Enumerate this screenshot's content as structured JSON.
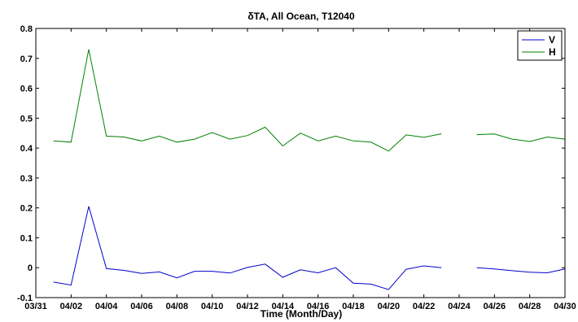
{
  "chart_data": {
    "type": "line",
    "title": "δTA,  All Ocean,   T12040",
    "xlabel": "Time (Month/Day)",
    "ylabel": "",
    "x_tick_labels": [
      "03/31",
      "04/02",
      "04/04",
      "04/06",
      "04/08",
      "04/10",
      "04/12",
      "04/14",
      "04/16",
      "04/18",
      "04/20",
      "04/22",
      "04/24",
      "04/26",
      "04/28",
      "04/30"
    ],
    "y_tick_labels": [
      "-0.1",
      "0",
      "0.1",
      "0.2",
      "0.3",
      "0.4",
      "0.5",
      "0.6",
      "0.7",
      "0.8"
    ],
    "xlim": [
      "03/31",
      "04/30"
    ],
    "ylim": [
      -0.1,
      0.8
    ],
    "grid": false,
    "legend_position": "top-right",
    "x": [
      "04/01",
      "04/02",
      "04/03",
      "04/04",
      "04/05",
      "04/06",
      "04/07",
      "04/08",
      "04/09",
      "04/10",
      "04/11",
      "04/12",
      "04/13",
      "04/14",
      "04/15",
      "04/16",
      "04/17",
      "04/18",
      "04/19",
      "04/20",
      "04/21",
      "04/22",
      "04/23",
      "04/24",
      "04/25",
      "04/26",
      "04/27",
      "04/28",
      "04/29",
      "04/30"
    ],
    "series": [
      {
        "name": "V",
        "color": "#0000cc",
        "values": [
          -0.048,
          -0.058,
          0.205,
          -0.003,
          -0.009,
          -0.019,
          -0.014,
          -0.034,
          -0.012,
          -0.012,
          -0.018,
          0.001,
          0.012,
          -0.032,
          -0.007,
          -0.017,
          0.0,
          -0.052,
          -0.055,
          -0.073,
          -0.005,
          0.006,
          0.0,
          null,
          0.0,
          -0.004,
          -0.01,
          -0.015,
          -0.017,
          -0.004
        ]
      },
      {
        "name": "H",
        "color": "#008000",
        "values": [
          0.424,
          0.42,
          0.73,
          0.44,
          0.437,
          0.424,
          0.44,
          0.42,
          0.43,
          0.452,
          0.43,
          0.442,
          0.47,
          0.407,
          0.45,
          0.424,
          0.44,
          0.424,
          0.42,
          0.39,
          0.444,
          0.436,
          0.448,
          null,
          0.445,
          0.447,
          0.43,
          0.422,
          0.437,
          0.43
        ]
      }
    ]
  }
}
